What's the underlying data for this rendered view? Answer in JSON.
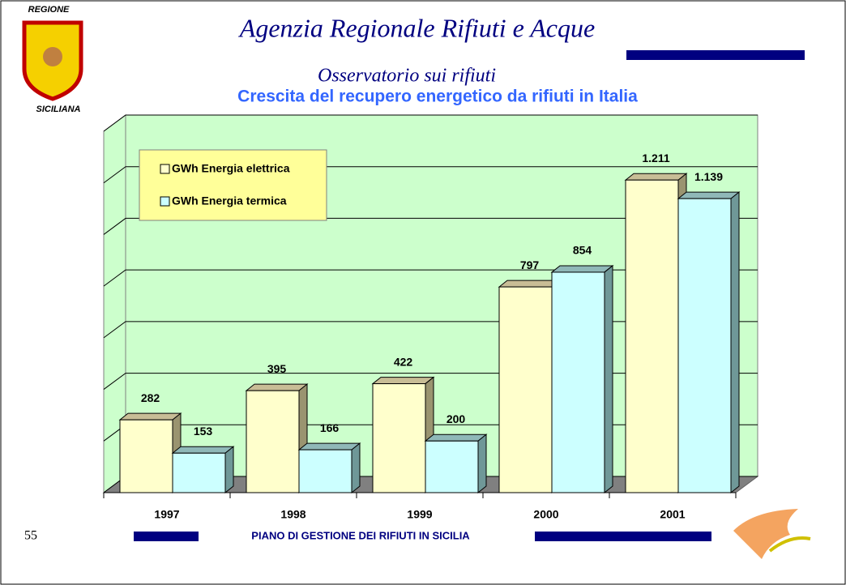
{
  "header": {
    "region_top": "REGIONE",
    "region_bottom": "SICILIANA",
    "agency": "Agenzia Regionale Rifiuti e Acque",
    "office": "Osservatorio sui rifiuti"
  },
  "page_number": "55",
  "footer": "PIANO DI GESTIONE DEI RIFIUTI IN SICILIA",
  "chart_data": {
    "type": "bar3d",
    "title": "Crescita del recupero energetico da rifiuti in Italia",
    "categories": [
      "1997",
      "1998",
      "1999",
      "2000",
      "2001"
    ],
    "series": [
      {
        "name": "GWh Energia elettrica",
        "color": "#ffffcc",
        "values": [
          282,
          395,
          422,
          797,
          1211
        ],
        "value_labels": [
          "282",
          "395",
          "422",
          "797",
          "1.211"
        ]
      },
      {
        "name": "GWh Energia termica",
        "color": "#ccffff",
        "values": [
          153,
          166,
          200,
          854,
          1139
        ],
        "value_labels": [
          "153",
          "166",
          "200",
          "854",
          "1.139"
        ]
      }
    ],
    "ylim": [
      0,
      1400
    ],
    "yticks": [
      0,
      200,
      400,
      600,
      800,
      1000,
      1200,
      1400
    ],
    "grid": true,
    "wall_color": "#ccffcc",
    "floor_color": "#808080",
    "legend_color": "#ffff99",
    "legend_position": "upper left"
  }
}
